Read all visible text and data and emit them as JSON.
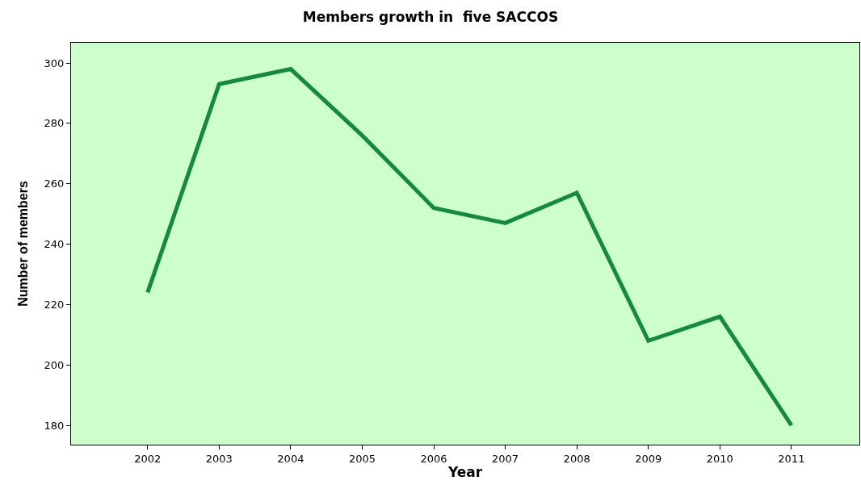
{
  "chart_data": {
    "type": "line",
    "title": "Members growth in  five SACCOS",
    "xlabel": "Year",
    "ylabel": "Number of members",
    "x": [
      2002,
      2003,
      2004,
      2005,
      2006,
      2007,
      2008,
      2009,
      2010,
      2011
    ],
    "series": [
      {
        "color": "#17893f",
        "values": [
          224,
          293,
          298,
          276,
          252,
          247,
          257,
          208,
          216,
          180
        ]
      }
    ],
    "xlim": [
      2000.93,
      2011.95
    ],
    "xticks": [
      2002,
      2003,
      2004,
      2005,
      2006,
      2007,
      2008,
      2009,
      2010,
      2011
    ],
    "ylim": [
      173.6,
      306.7
    ],
    "yticks": [
      180,
      200,
      220,
      240,
      260,
      280,
      300
    ],
    "grid": false,
    "marker": "none",
    "line_style": "solid"
  }
}
